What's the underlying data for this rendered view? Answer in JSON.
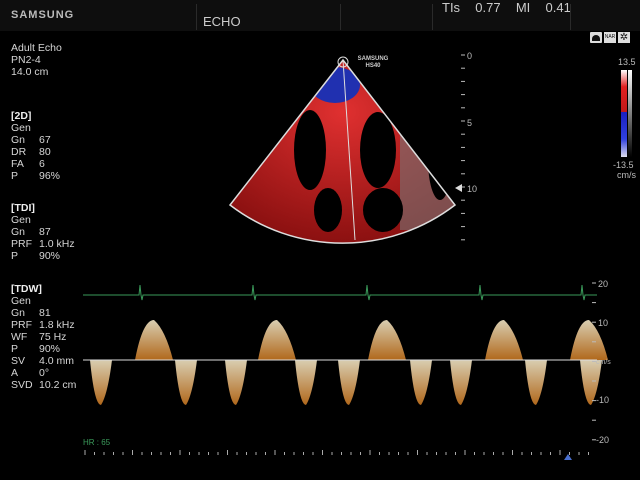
{
  "header": {
    "brand": "SAMSUNG",
    "mode": "ECHO",
    "tis_label": "TIs",
    "tis_value": "0.77",
    "mi_label": "MI",
    "mi_value": "0.41"
  },
  "probe": {
    "preset": "Adult Echo",
    "probe": "PN2-4",
    "depth": "14.0 cm"
  },
  "sections": [
    {
      "title": "[2D]",
      "rows": [
        [
          "Gen",
          ""
        ],
        [
          "Gn",
          "67"
        ],
        [
          "DR",
          "80"
        ],
        [
          "FA",
          "6"
        ],
        [
          "P",
          "96%"
        ]
      ]
    },
    {
      "title": "[TDI]",
      "rows": [
        [
          "Gen",
          ""
        ],
        [
          "Gn",
          "87"
        ],
        [
          "PRF",
          "1.0 kHz"
        ],
        [
          "P",
          "90%"
        ]
      ]
    },
    {
      "title": "[TDW]",
      "rows": [
        [
          "Gen",
          ""
        ],
        [
          "Gn",
          "81"
        ],
        [
          "PRF",
          "1.8 kHz"
        ],
        [
          "WF",
          "75 Hz"
        ],
        [
          "P",
          "90%"
        ],
        [
          "SV",
          "4.0 mm"
        ],
        [
          "A",
          "0°"
        ],
        [
          "SVD",
          "10.2 cm"
        ]
      ]
    }
  ],
  "sector_logo": {
    "line1": "SAMSUNG",
    "line2": "HS40"
  },
  "depth_scale": [
    "0",
    "5",
    "10"
  ],
  "color_bar": {
    "max": "13.5",
    "min": "-13.5",
    "unit": "cm/s",
    "pos_color": "#e02020",
    "neg_color": "#2030e0"
  },
  "doppler_scale": {
    "labels": [
      "20",
      "10",
      "cm/s",
      "-10",
      "-20"
    ]
  },
  "heart_rate": "HR : 65",
  "status_icons": [
    "probe-icon",
    "nar-icon",
    "settings-gear-icon"
  ],
  "status_icon_text": {
    "nar": "NAR"
  }
}
